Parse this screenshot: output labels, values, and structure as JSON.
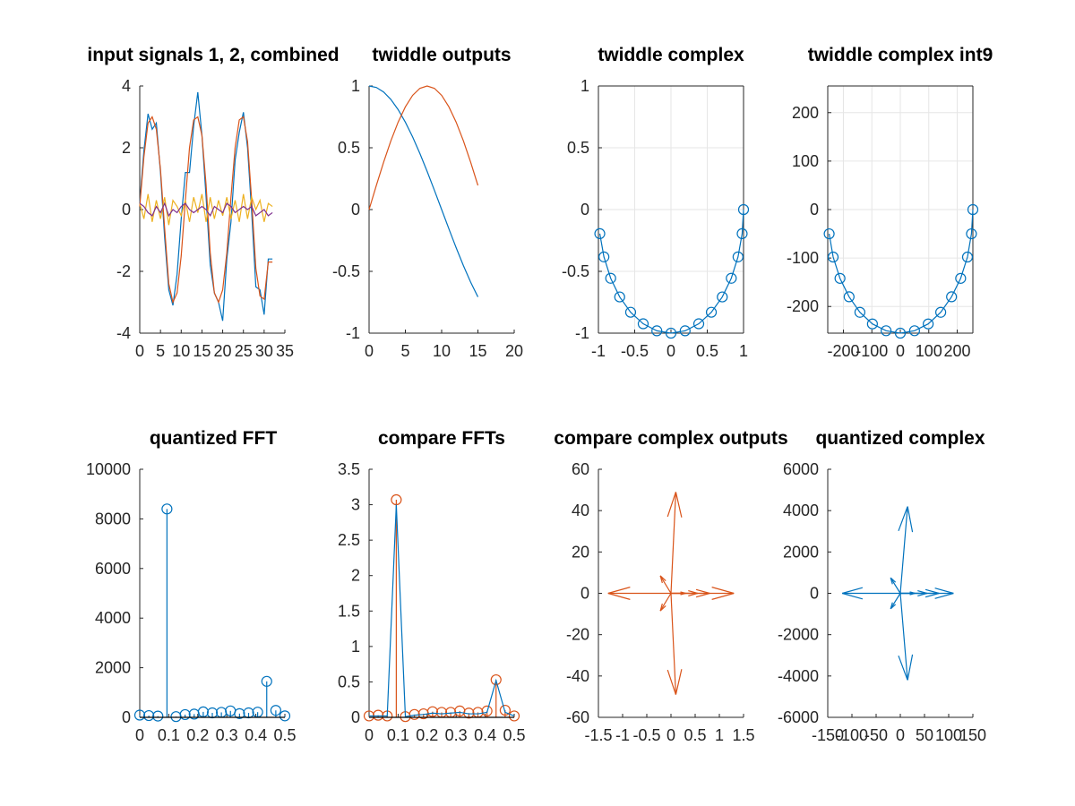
{
  "figure": {
    "background": "#ffffff"
  },
  "colors": {
    "blue": "#0072bd",
    "orange": "#d95319",
    "yellow": "#edb120",
    "purple": "#7e2f8e"
  },
  "chart_data": [
    {
      "id": "p1",
      "type": "line",
      "title": "input signals 1, 2, combined",
      "xlim": [
        0,
        35
      ],
      "ylim": [
        -4,
        4
      ],
      "xticks": [
        0,
        5,
        10,
        15,
        20,
        25,
        30,
        35
      ],
      "yticks": [
        -4,
        -2,
        0,
        2,
        4
      ],
      "grid": false,
      "box": false,
      "series": [
        {
          "color": "blue",
          "x": [
            0,
            1,
            2,
            3,
            4,
            5,
            6,
            7,
            8,
            9,
            10,
            11,
            12,
            13,
            14,
            15,
            16,
            17,
            18,
            19,
            20,
            21,
            22,
            23,
            24,
            25,
            26,
            27,
            28,
            29,
            30,
            31,
            32
          ],
          "y": [
            0.2,
            1.9,
            3.1,
            2.6,
            2.8,
            1.2,
            -0.9,
            -2.6,
            -3.1,
            -2.1,
            -0.3,
            1.2,
            1.2,
            2.7,
            3.8,
            2.4,
            0.4,
            -1.8,
            -2.7,
            -3.0,
            -3.6,
            -1.6,
            -0.4,
            1.6,
            2.5,
            3.15,
            2.0,
            -0.1,
            -2.5,
            -2.6,
            -3.4,
            -1.6,
            -1.6
          ]
        },
        {
          "color": "orange",
          "x": [
            0,
            1,
            2,
            3,
            4,
            5,
            6,
            7,
            8,
            9,
            10,
            11,
            12,
            13,
            14,
            15,
            16,
            17,
            18,
            19,
            20,
            21,
            22,
            23,
            24,
            25,
            26,
            27,
            28,
            29,
            30,
            31,
            32
          ],
          "y": [
            0.1,
            1.7,
            2.8,
            3.0,
            2.6,
            1.3,
            -0.6,
            -2.4,
            -3.0,
            -2.7,
            -1.5,
            0.3,
            2.0,
            2.9,
            3.0,
            2.4,
            0.8,
            -1.4,
            -2.7,
            -3.0,
            -2.6,
            -1.4,
            0.4,
            2.0,
            2.9,
            3.0,
            2.2,
            0.3,
            -1.9,
            -2.8,
            -2.9,
            -1.7,
            -1.7
          ]
        },
        {
          "color": "yellow",
          "x": [
            0,
            1,
            2,
            3,
            4,
            5,
            6,
            7,
            8,
            9,
            10,
            11,
            12,
            13,
            14,
            15,
            16,
            17,
            18,
            19,
            20,
            21,
            22,
            23,
            24,
            25,
            26,
            27,
            28,
            29,
            30,
            31,
            32
          ],
          "y": [
            0.2,
            -0.3,
            0.5,
            -0.4,
            0.3,
            -0.3,
            0.4,
            -0.5,
            0.3,
            0.1,
            -0.2,
            0.3,
            -0.4,
            0.4,
            -0.1,
            0.5,
            -0.4,
            0.4,
            -0.3,
            0.3,
            -0.2,
            0.4,
            -0.3,
            0.3,
            -0.4,
            0.5,
            -0.3,
            0.4,
            0.0,
            0.3,
            -0.4,
            0.2,
            0.1
          ]
        },
        {
          "color": "purple",
          "x": [
            0,
            1,
            2,
            3,
            4,
            5,
            6,
            7,
            8,
            9,
            10,
            11,
            12,
            13,
            14,
            15,
            16,
            17,
            18,
            19,
            20,
            21,
            22,
            23,
            24,
            25,
            26,
            27,
            28,
            29,
            30,
            31,
            32
          ],
          "y": [
            0.2,
            0.1,
            -0.1,
            -0.2,
            0.1,
            -0.1,
            0.2,
            -0.2,
            0.0,
            -0.1,
            0.1,
            0.2,
            0.0,
            -0.1,
            0.0,
            0.1,
            0.0,
            -0.2,
            0.1,
            0.0,
            -0.1,
            0.2,
            0.1,
            -0.1,
            0.0,
            0.1,
            0.0,
            0.1,
            -0.2,
            -0.1,
            0.0,
            -0.2,
            -0.1
          ]
        }
      ]
    },
    {
      "id": "p2",
      "type": "line",
      "title": "twiddle outputs",
      "xlim": [
        0,
        20
      ],
      "ylim": [
        -1,
        1
      ],
      "xticks": [
        0,
        5,
        10,
        15,
        20
      ],
      "yticks": [
        -1,
        -0.5,
        0,
        0.5,
        1
      ],
      "grid": false,
      "box": false,
      "series": [
        {
          "color": "blue",
          "x": [
            0,
            1,
            2,
            3,
            4,
            5,
            6,
            7,
            8,
            9,
            10,
            11,
            12,
            13,
            14,
            15
          ],
          "y": [
            1.0,
            0.988,
            0.951,
            0.891,
            0.809,
            0.707,
            0.588,
            0.454,
            0.309,
            0.156,
            0.0,
            -0.156,
            -0.309,
            -0.454,
            -0.588,
            -0.707
          ]
        },
        {
          "color": "orange",
          "x": [
            0,
            1,
            2,
            3,
            4,
            5,
            6,
            7,
            8,
            9,
            10,
            11,
            12,
            13,
            14,
            15
          ],
          "y": [
            0.0,
            0.195,
            0.383,
            0.556,
            0.707,
            0.831,
            0.924,
            0.981,
            1.0,
            0.981,
            0.924,
            0.831,
            0.707,
            0.556,
            0.383,
            0.195
          ]
        }
      ]
    },
    {
      "id": "p3",
      "type": "scatter",
      "title": "twiddle complex",
      "xlim": [
        -1,
        1
      ],
      "ylim": [
        -1,
        1
      ],
      "xticks": [
        -1,
        -0.5,
        0,
        0.5,
        1
      ],
      "yticks": [
        -1,
        -0.5,
        0,
        0.5,
        1
      ],
      "grid": true,
      "box": true,
      "series": [
        {
          "color": "blue",
          "markers": "circle",
          "x": [
            1.0,
            0.981,
            0.924,
            0.831,
            0.707,
            0.556,
            0.383,
            0.195,
            0.0,
            -0.195,
            -0.383,
            -0.556,
            -0.707,
            -0.831,
            -0.924,
            -0.981
          ],
          "y": [
            0.0,
            -0.195,
            -0.383,
            -0.556,
            -0.707,
            -0.831,
            -0.924,
            -0.981,
            -1.0,
            -0.981,
            -0.924,
            -0.831,
            -0.707,
            -0.556,
            -0.383,
            -0.195
          ]
        }
      ]
    },
    {
      "id": "p4",
      "type": "scatter",
      "title": "twiddle complex int9",
      "xlim": [
        -255,
        255
      ],
      "ylim": [
        -255,
        255
      ],
      "xticks": [
        -200,
        -100,
        0,
        100,
        200
      ],
      "yticks": [
        -200,
        -100,
        0,
        100,
        200
      ],
      "grid": true,
      "box": true,
      "series": [
        {
          "color": "blue",
          "markers": "circle",
          "x": [
            255,
            250,
            236,
            212,
            180,
            142,
            98,
            50,
            0,
            -50,
            -98,
            -142,
            -180,
            -212,
            -236,
            -250
          ],
          "y": [
            0,
            -50,
            -98,
            -142,
            -180,
            -212,
            -236,
            -250,
            -255,
            -250,
            -236,
            -212,
            -180,
            -142,
            -98,
            -50
          ]
        }
      ]
    },
    {
      "id": "p5",
      "type": "bar",
      "style": "stem",
      "title": "quantized FFT",
      "xlim": [
        0,
        0.5
      ],
      "ylim": [
        0,
        10000
      ],
      "xticks": [
        0,
        0.1,
        0.2,
        0.3,
        0.4,
        0.5
      ],
      "yticks": [
        0,
        2000,
        4000,
        6000,
        8000,
        10000
      ],
      "grid": false,
      "box": false,
      "series": [
        {
          "color": "blue",
          "x": [
            0,
            0.03125,
            0.0625,
            0.09375,
            0.125,
            0.15625,
            0.1875,
            0.21875,
            0.25,
            0.28125,
            0.3125,
            0.34375,
            0.375,
            0.40625,
            0.4375,
            0.46875,
            0.5
          ],
          "values": [
            90,
            70,
            50,
            8400,
            30,
            110,
            130,
            220,
            180,
            200,
            260,
            150,
            180,
            210,
            1450,
            280,
            60
          ]
        }
      ]
    },
    {
      "id": "p6",
      "type": "bar",
      "style": "stem",
      "title": "compare FFTs",
      "xlim": [
        0,
        0.5
      ],
      "ylim": [
        0,
        3.5
      ],
      "xticks": [
        0,
        0.1,
        0.2,
        0.3,
        0.4,
        0.5
      ],
      "yticks": [
        0,
        0.5,
        1,
        1.5,
        2,
        2.5,
        3,
        3.5
      ],
      "grid": false,
      "box": false,
      "series": [
        {
          "color": "orange",
          "x": [
            0,
            0.03125,
            0.0625,
            0.09375,
            0.125,
            0.15625,
            0.1875,
            0.21875,
            0.25,
            0.28125,
            0.3125,
            0.34375,
            0.375,
            0.40625,
            0.4375,
            0.46875,
            0.5
          ],
          "values": [
            0.02,
            0.03,
            0.02,
            3.07,
            0.01,
            0.04,
            0.05,
            0.08,
            0.07,
            0.07,
            0.09,
            0.06,
            0.07,
            0.09,
            0.53,
            0.1,
            0.02
          ]
        },
        {
          "color": "blue",
          "style": "line",
          "x": [
            0,
            0.03125,
            0.0625,
            0.09375,
            0.125,
            0.15625,
            0.1875,
            0.21875,
            0.25,
            0.28125,
            0.3125,
            0.34375,
            0.375,
            0.40625,
            0.4375,
            0.46875,
            0.5
          ],
          "values": [
            0.02,
            0.02,
            0.02,
            3.0,
            0.01,
            0.03,
            0.04,
            0.06,
            0.05,
            0.06,
            0.07,
            0.05,
            0.05,
            0.07,
            0.52,
            0.07,
            0.02
          ]
        }
      ]
    },
    {
      "id": "p7",
      "type": "line",
      "style": "compass",
      "title": "compare complex outputs",
      "xlim": [
        -1.5,
        1.5
      ],
      "ylim": [
        -60,
        60
      ],
      "xticks": [
        -1.5,
        -1,
        -0.5,
        0,
        0.5,
        1,
        1.5
      ],
      "yticks": [
        -60,
        -40,
        -20,
        0,
        20,
        40,
        60
      ],
      "grid": false,
      "box": false,
      "series": [
        {
          "color": "orange",
          "vectors": [
            [
              -1.3,
              0
            ],
            [
              0.1,
              49
            ],
            [
              0.1,
              -49
            ],
            [
              -0.22,
              8.5
            ],
            [
              -0.22,
              -8.5
            ],
            [
              0.3,
              0
            ],
            [
              0.55,
              0
            ],
            [
              0.8,
              0
            ],
            [
              1.3,
              0
            ]
          ]
        }
      ]
    },
    {
      "id": "p8",
      "type": "line",
      "style": "compass",
      "title": "quantized complex",
      "xlim": [
        -150,
        150
      ],
      "ylim": [
        -6000,
        6000
      ],
      "xticks": [
        -150,
        -100,
        -50,
        0,
        50,
        100,
        150
      ],
      "yticks": [
        -6000,
        -4000,
        -2000,
        0,
        2000,
        4000,
        6000
      ],
      "grid": false,
      "box": false,
      "series": [
        {
          "color": "blue",
          "vectors": [
            [
              -120,
              0
            ],
            [
              15,
              4200
            ],
            [
              15,
              -4200
            ],
            [
              -20,
              750
            ],
            [
              -20,
              -750
            ],
            [
              30,
              0
            ],
            [
              55,
              0
            ],
            [
              80,
              0
            ],
            [
              110,
              0
            ]
          ]
        }
      ]
    }
  ]
}
